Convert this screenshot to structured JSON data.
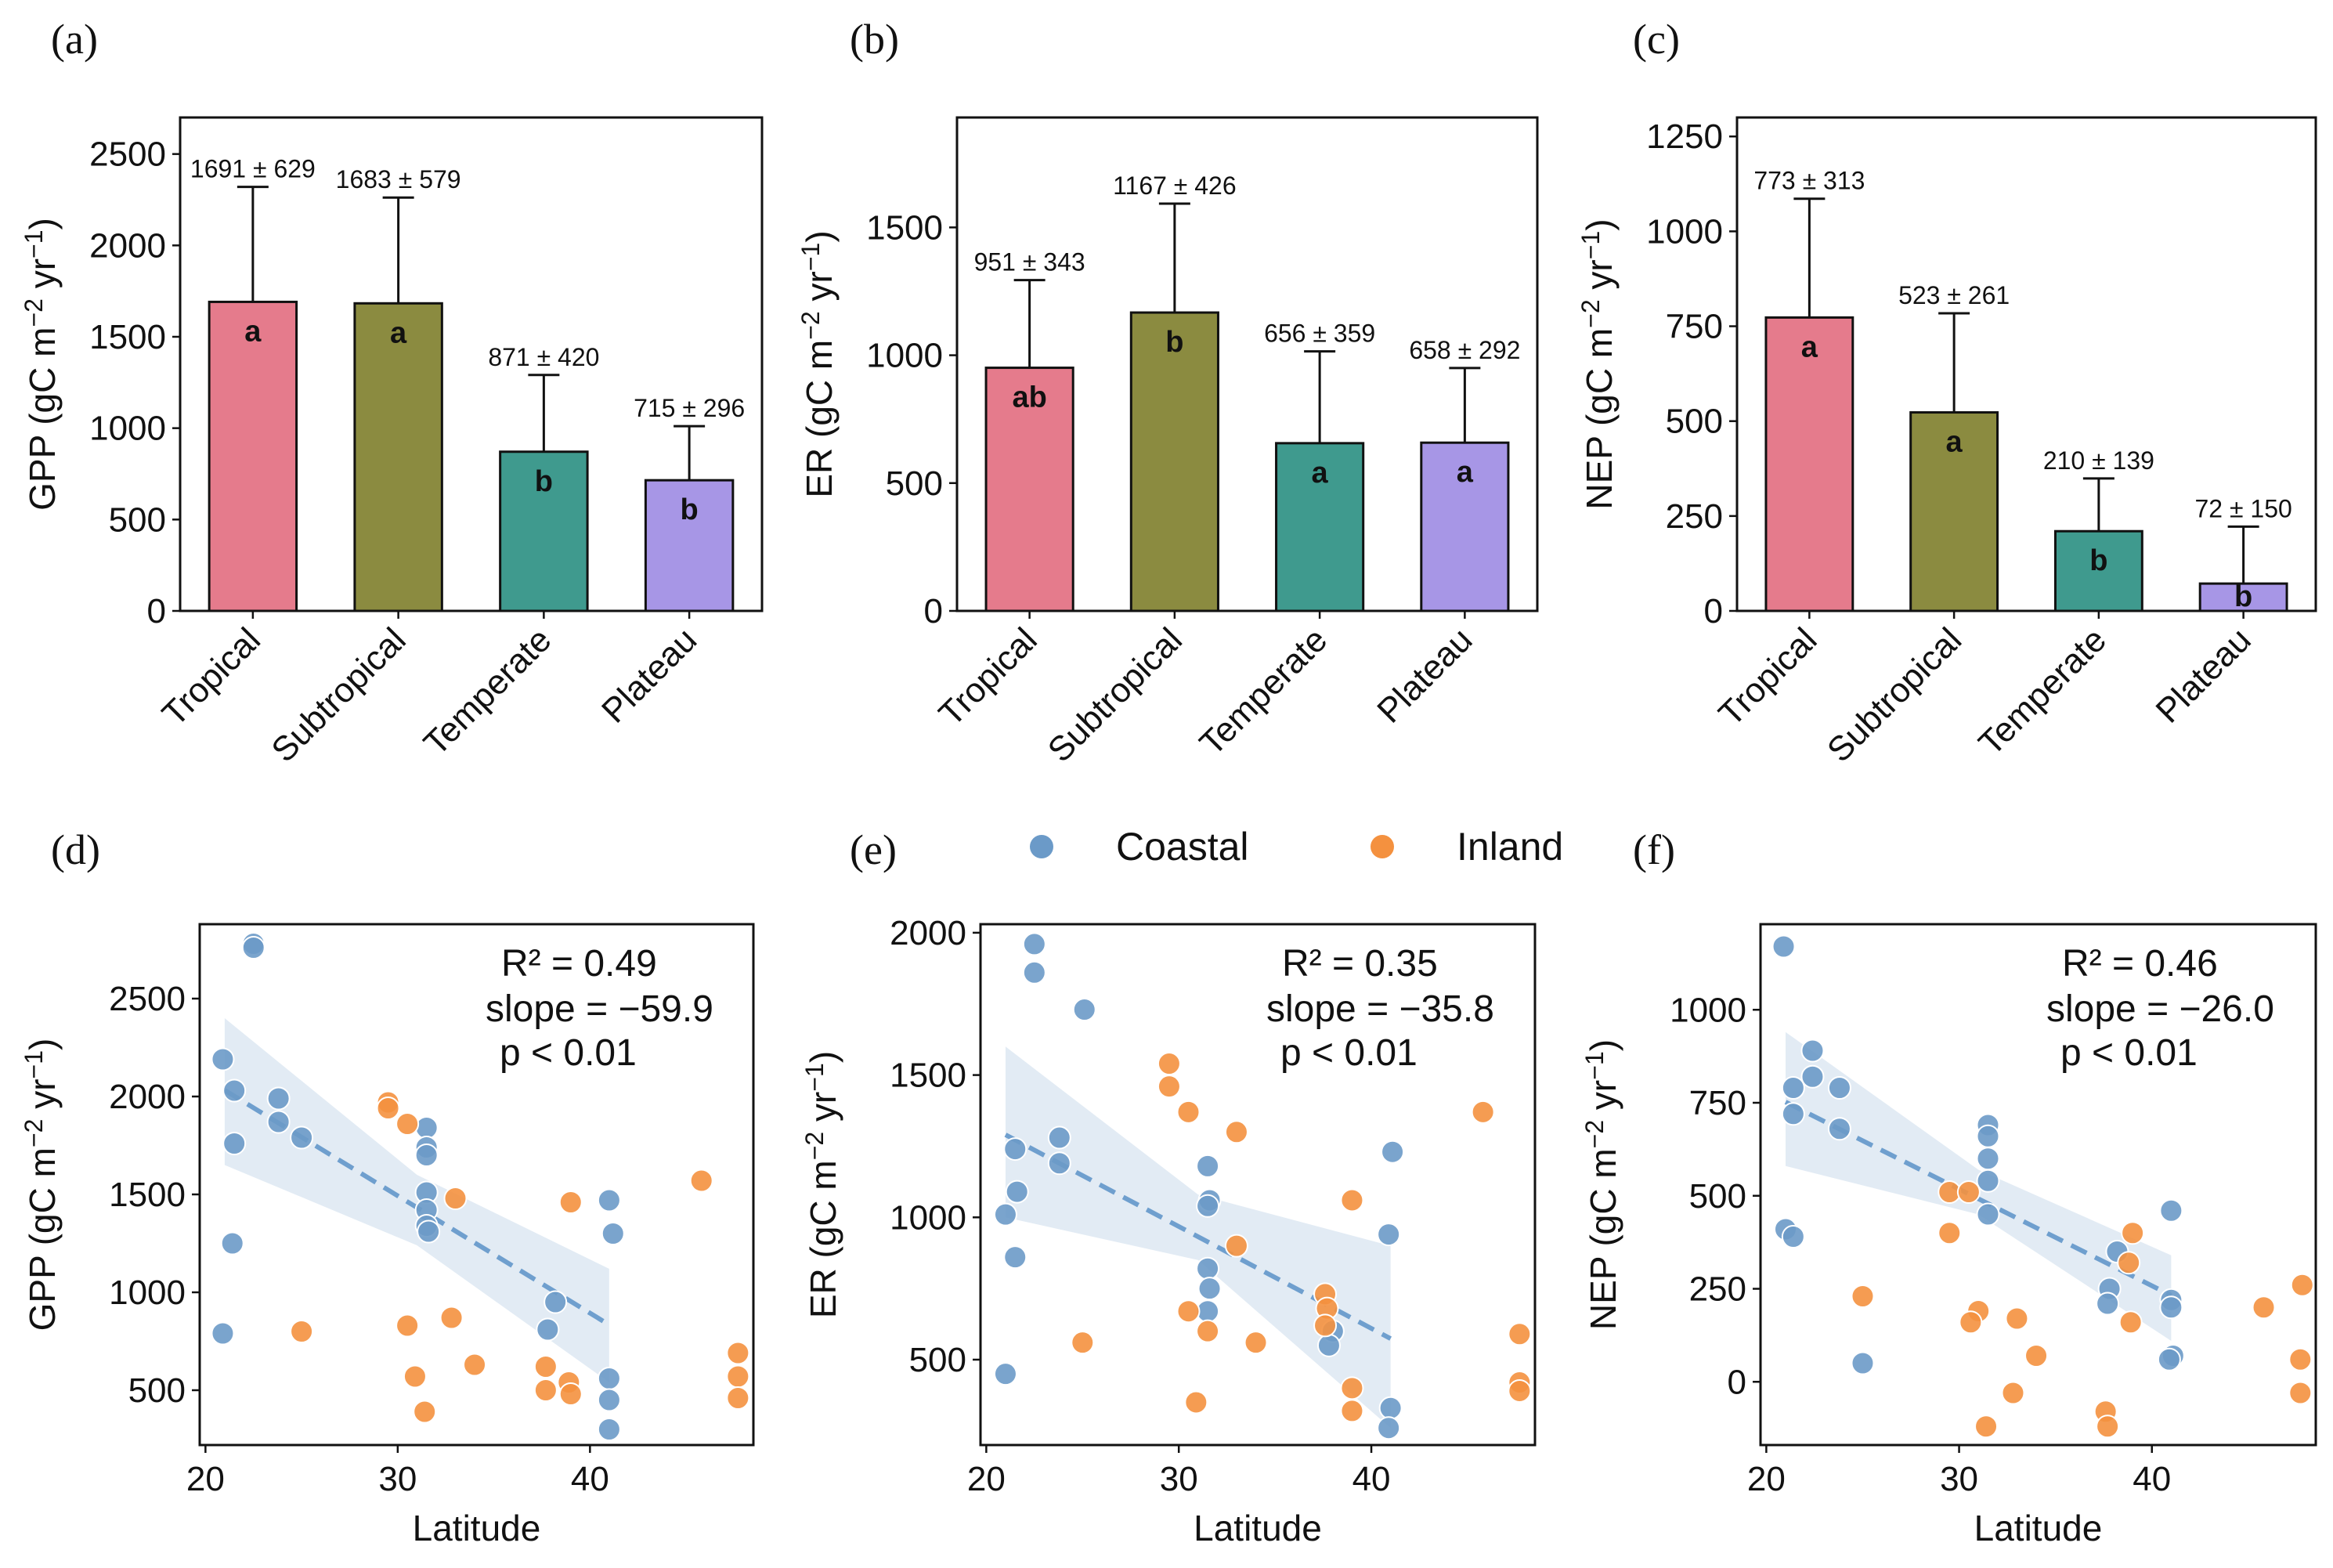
{
  "legend": {
    "coastal": "Coastal",
    "inland": "Inland",
    "coastal_color": "#6b9ac8",
    "inland_color": "#f4913f"
  },
  "colors": {
    "Tropical": "#e57b8c",
    "Subtropical": "#8b8b40",
    "Temperate": "#3f9a8e",
    "Plateau": "#a796e6",
    "fit_line": "#6f9fce",
    "ci_band": "#dbe6f1"
  },
  "chart_data": [
    {
      "id": "a",
      "panel_label": "(a)",
      "type": "bar",
      "ylabel": "GPP (gC m⁻² yr⁻¹)",
      "ylim": [
        0,
        2700
      ],
      "yticks": [
        0,
        500,
        1000,
        1500,
        2000,
        2500
      ],
      "categories": [
        "Tropical",
        "Subtropical",
        "Temperate",
        "Plateau"
      ],
      "values": [
        1691,
        1683,
        871,
        715
      ],
      "errors": [
        629,
        579,
        420,
        296
      ],
      "value_labels": [
        "1691 ± 629",
        "1683 ± 579",
        "871 ± 420",
        "715 ± 296"
      ],
      "letters": [
        "a",
        "a",
        "b",
        "b"
      ]
    },
    {
      "id": "b",
      "panel_label": "(b)",
      "type": "bar",
      "ylabel": "ER (gC m⁻² yr⁻¹)",
      "ylim": [
        0,
        1930
      ],
      "yticks": [
        0,
        500,
        1000,
        1500
      ],
      "categories": [
        "Tropical",
        "Subtropical",
        "Temperate",
        "Plateau"
      ],
      "values": [
        951,
        1167,
        656,
        658
      ],
      "errors": [
        343,
        426,
        359,
        292
      ],
      "value_labels": [
        "951 ± 343",
        "1167 ± 426",
        "656 ± 359",
        "658 ± 292"
      ],
      "letters": [
        "ab",
        "b",
        "a",
        "a"
      ]
    },
    {
      "id": "c",
      "panel_label": "(c)",
      "type": "bar",
      "ylabel": "NEP (gC m⁻² yr⁻¹)",
      "ylim": [
        0,
        1300
      ],
      "yticks": [
        0,
        250,
        500,
        750,
        1000,
        1250
      ],
      "categories": [
        "Tropical",
        "Subtropical",
        "Temperate",
        "Plateau"
      ],
      "values": [
        773,
        523,
        210,
        72
      ],
      "errors": [
        313,
        261,
        139,
        150
      ],
      "value_labels": [
        "773 ± 313",
        "523 ± 261",
        "210 ± 139",
        "72 ± 150"
      ],
      "letters": [
        "a",
        "a",
        "b",
        "b"
      ]
    },
    {
      "id": "d",
      "panel_label": "(d)",
      "type": "scatter",
      "xlabel": "Latitude",
      "ylabel": "GPP (gC m⁻² yr⁻¹)",
      "xlim": [
        19.7,
        48.5
      ],
      "ylim": [
        220,
        2880
      ],
      "xticks": [
        20,
        30,
        40
      ],
      "yticks": [
        500,
        1000,
        1500,
        2000,
        2500
      ],
      "stats": {
        "r2": "R² = 0.49",
        "slope": "slope = −59.9",
        "p": "p < 0.01"
      },
      "fit": {
        "x0": 21,
        "y0": 2032,
        "x1": 41,
        "y1": 834
      },
      "band": {
        "upper": [
          [
            21,
            2400
          ],
          [
            31,
            1600
          ],
          [
            41,
            1120
          ]
        ],
        "lower": [
          [
            21,
            1650
          ],
          [
            31,
            1240
          ],
          [
            41,
            540
          ]
        ]
      },
      "series": [
        {
          "name": "Coastal",
          "points": [
            [
              22.5,
              2780
            ],
            [
              22.5,
              2760
            ],
            [
              20.9,
              2190
            ],
            [
              21.5,
              2030
            ],
            [
              23.8,
              1990
            ],
            [
              23.8,
              1870
            ],
            [
              25.0,
              1790
            ],
            [
              21.5,
              1760
            ],
            [
              31.5,
              1840
            ],
            [
              31.5,
              1740
            ],
            [
              31.5,
              1700
            ],
            [
              31.5,
              1510
            ],
            [
              31.5,
              1420
            ],
            [
              31.5,
              1340
            ],
            [
              31.6,
              1310
            ],
            [
              21.4,
              1250
            ],
            [
              20.9,
              790
            ],
            [
              41.0,
              1470
            ],
            [
              41.2,
              1300
            ],
            [
              38.2,
              950
            ],
            [
              37.8,
              810
            ],
            [
              41.0,
              560
            ],
            [
              41.0,
              450
            ],
            [
              41.0,
              300
            ]
          ]
        },
        {
          "name": "Inland",
          "points": [
            [
              29.5,
              1970
            ],
            [
              29.5,
              1940
            ],
            [
              30.5,
              1860
            ],
            [
              33.0,
              1480
            ],
            [
              39.0,
              1460
            ],
            [
              45.8,
              1570
            ],
            [
              30.5,
              830
            ],
            [
              32.8,
              870
            ],
            [
              25.0,
              800
            ],
            [
              30.9,
              570
            ],
            [
              31.4,
              390
            ],
            [
              34.0,
              630
            ],
            [
              37.7,
              620
            ],
            [
              37.7,
              500
            ],
            [
              38.9,
              540
            ],
            [
              39.0,
              480
            ],
            [
              47.7,
              690
            ],
            [
              47.7,
              570
            ],
            [
              47.7,
              460
            ]
          ]
        }
      ]
    },
    {
      "id": "e",
      "panel_label": "(e)",
      "type": "scatter",
      "xlabel": "Latitude",
      "ylabel": "ER (gC m⁻² yr⁻¹)",
      "xlim": [
        19.7,
        48.5
      ],
      "ylim": [
        200,
        2030
      ],
      "xticks": [
        20,
        30,
        40
      ],
      "yticks": [
        500,
        1000,
        1500,
        2000
      ],
      "stats": {
        "r2": "R² = 0.35",
        "slope": "slope = −35.8",
        "p": "p < 0.01"
      },
      "fit": {
        "x0": 21,
        "y0": 1290,
        "x1": 41,
        "y1": 574
      },
      "band": {
        "upper": [
          [
            21,
            1600
          ],
          [
            31,
            1080
          ],
          [
            41,
            900
          ]
        ],
        "lower": [
          [
            21,
            1000
          ],
          [
            31,
            850
          ],
          [
            41,
            260
          ]
        ]
      },
      "series": [
        {
          "name": "Coastal",
          "points": [
            [
              22.5,
              1960
            ],
            [
              22.5,
              1860
            ],
            [
              25.1,
              1730
            ],
            [
              23.8,
              1280
            ],
            [
              23.8,
              1190
            ],
            [
              21.5,
              1240
            ],
            [
              21.6,
              1090
            ],
            [
              21.0,
              1010
            ],
            [
              21.5,
              860
            ],
            [
              21.0,
              450
            ],
            [
              31.5,
              1180
            ],
            [
              31.6,
              1060
            ],
            [
              31.5,
              1040
            ],
            [
              31.5,
              820
            ],
            [
              31.6,
              750
            ],
            [
              31.5,
              670
            ],
            [
              38.0,
              600
            ],
            [
              37.8,
              550
            ],
            [
              41.1,
              1230
            ],
            [
              40.9,
              940
            ],
            [
              41.0,
              330
            ],
            [
              40.9,
              260
            ]
          ]
        },
        {
          "name": "Inland",
          "points": [
            [
              29.5,
              1540
            ],
            [
              29.5,
              1460
            ],
            [
              30.5,
              1370
            ],
            [
              33.0,
              1300
            ],
            [
              45.8,
              1370
            ],
            [
              39.0,
              1060
            ],
            [
              33.0,
              900
            ],
            [
              37.6,
              730
            ],
            [
              37.7,
              680
            ],
            [
              37.6,
              620
            ],
            [
              30.5,
              670
            ],
            [
              31.5,
              600
            ],
            [
              34.0,
              560
            ],
            [
              25.0,
              560
            ],
            [
              30.9,
              350
            ],
            [
              39.0,
              400
            ],
            [
              39.0,
              320
            ],
            [
              47.7,
              590
            ],
            [
              47.7,
              420
            ],
            [
              47.7,
              390
            ]
          ]
        }
      ]
    },
    {
      "id": "f",
      "panel_label": "(f)",
      "type": "scatter",
      "xlabel": "Latitude",
      "ylabel": "NEP (gC m⁻² yr⁻¹)",
      "xlim": [
        19.7,
        48.5
      ],
      "ylim": [
        -170,
        1230
      ],
      "xticks": [
        20,
        30,
        40
      ],
      "yticks": [
        0,
        250,
        500,
        750,
        1000
      ],
      "stats": {
        "r2": "R² = 0.46",
        "slope": "slope = −26.0",
        "p": "p < 0.01"
      },
      "fit": {
        "x0": 21,
        "y0": 752,
        "x1": 41,
        "y1": 232
      },
      "band": {
        "upper": [
          [
            21,
            940
          ],
          [
            31,
            570
          ],
          [
            41,
            340
          ]
        ],
        "lower": [
          [
            21,
            580
          ],
          [
            31,
            450
          ],
          [
            41,
            110
          ]
        ]
      },
      "series": [
        {
          "name": "Coastal",
          "points": [
            [
              20.9,
              1170
            ],
            [
              22.4,
              890
            ],
            [
              22.4,
              820
            ],
            [
              21.4,
              790
            ],
            [
              23.8,
              790
            ],
            [
              21.4,
              720
            ],
            [
              23.8,
              680
            ],
            [
              21.0,
              410
            ],
            [
              21.4,
              390
            ],
            [
              25.0,
              50
            ],
            [
              31.5,
              690
            ],
            [
              31.5,
              660
            ],
            [
              31.5,
              600
            ],
            [
              31.5,
              540
            ],
            [
              31.5,
              450
            ],
            [
              38.2,
              350
            ],
            [
              37.8,
              250
            ],
            [
              37.7,
              210
            ],
            [
              41.0,
              460
            ],
            [
              41.0,
              220
            ],
            [
              41.0,
              200
            ],
            [
              41.1,
              70
            ],
            [
              40.9,
              60
            ]
          ]
        },
        {
          "name": "Inland",
          "points": [
            [
              29.5,
              510
            ],
            [
              30.5,
              510
            ],
            [
              29.5,
              400
            ],
            [
              39.0,
              400
            ],
            [
              38.8,
              320
            ],
            [
              25.0,
              230
            ],
            [
              31.0,
              190
            ],
            [
              30.6,
              160
            ],
            [
              33.0,
              170
            ],
            [
              38.9,
              160
            ],
            [
              45.8,
              200
            ],
            [
              47.8,
              260
            ],
            [
              47.7,
              60
            ],
            [
              47.7,
              -30
            ],
            [
              34.0,
              70
            ],
            [
              32.8,
              -30
            ],
            [
              31.4,
              -120
            ],
            [
              37.6,
              -80
            ],
            [
              37.7,
              -120
            ]
          ]
        }
      ]
    }
  ]
}
